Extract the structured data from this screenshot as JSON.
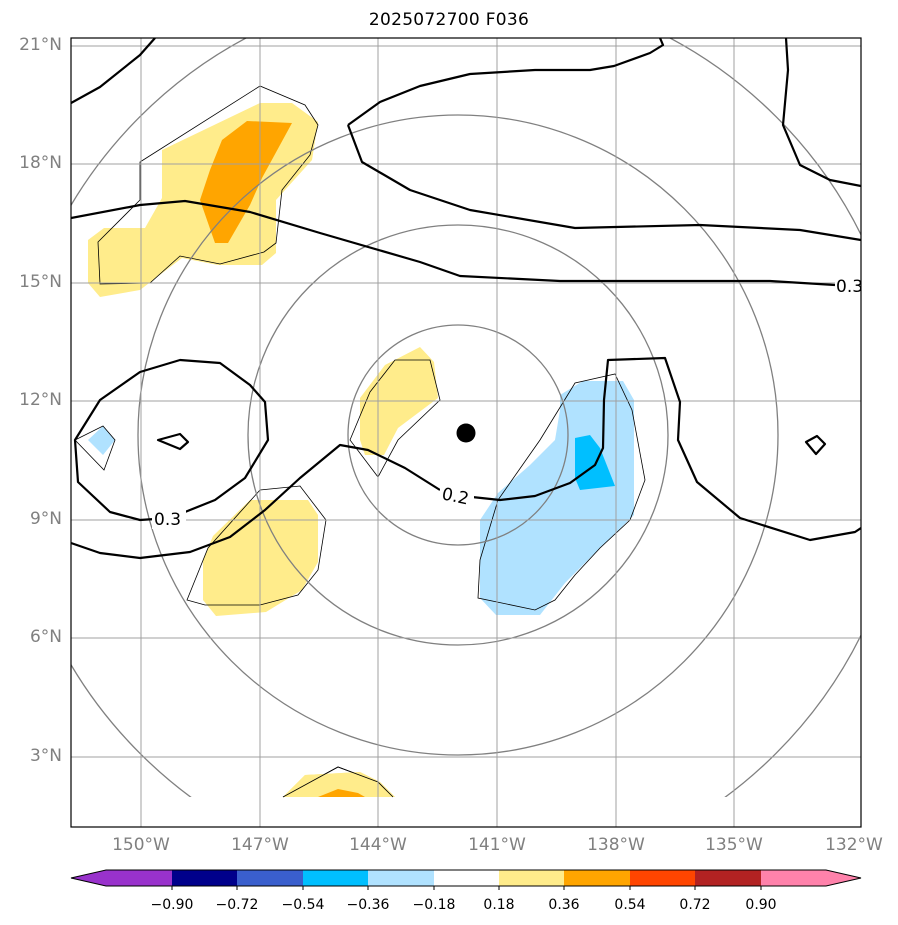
{
  "title": "2025072700 F036",
  "lat_labels": [
    "21°N",
    "18°N",
    "15°N",
    "12°N",
    "9°N",
    "6°N",
    "3°N"
  ],
  "lon_labels": [
    "150°W",
    "147°W",
    "144°W",
    "141°W",
    "138°W",
    "135°W",
    "132°W"
  ],
  "contour_labels": [
    "0.3",
    "0.3",
    "0.2"
  ],
  "colorbar": {
    "tick_labels": [
      "−0.90",
      "−0.72",
      "−0.54",
      "−0.36",
      "−0.18",
      "0.18",
      "0.36",
      "0.54",
      "0.72",
      "0.90"
    ],
    "colors": [
      "#9932cc",
      "#00008b",
      "#3a5fcd",
      "#00bfff",
      "#b0e2ff",
      "#ffffff",
      "#ffec8b",
      "#ffa500",
      "#ff4500",
      "#b22222",
      "#ff82ab"
    ]
  },
  "fill_colors": {
    "light_yellow": "#ffec8b",
    "orange": "#ffa500",
    "light_blue": "#b0e2ff",
    "deep_sky_blue": "#00bfff"
  },
  "storm_center_marker": {
    "lon": -141.8,
    "lat": 11.2
  }
}
